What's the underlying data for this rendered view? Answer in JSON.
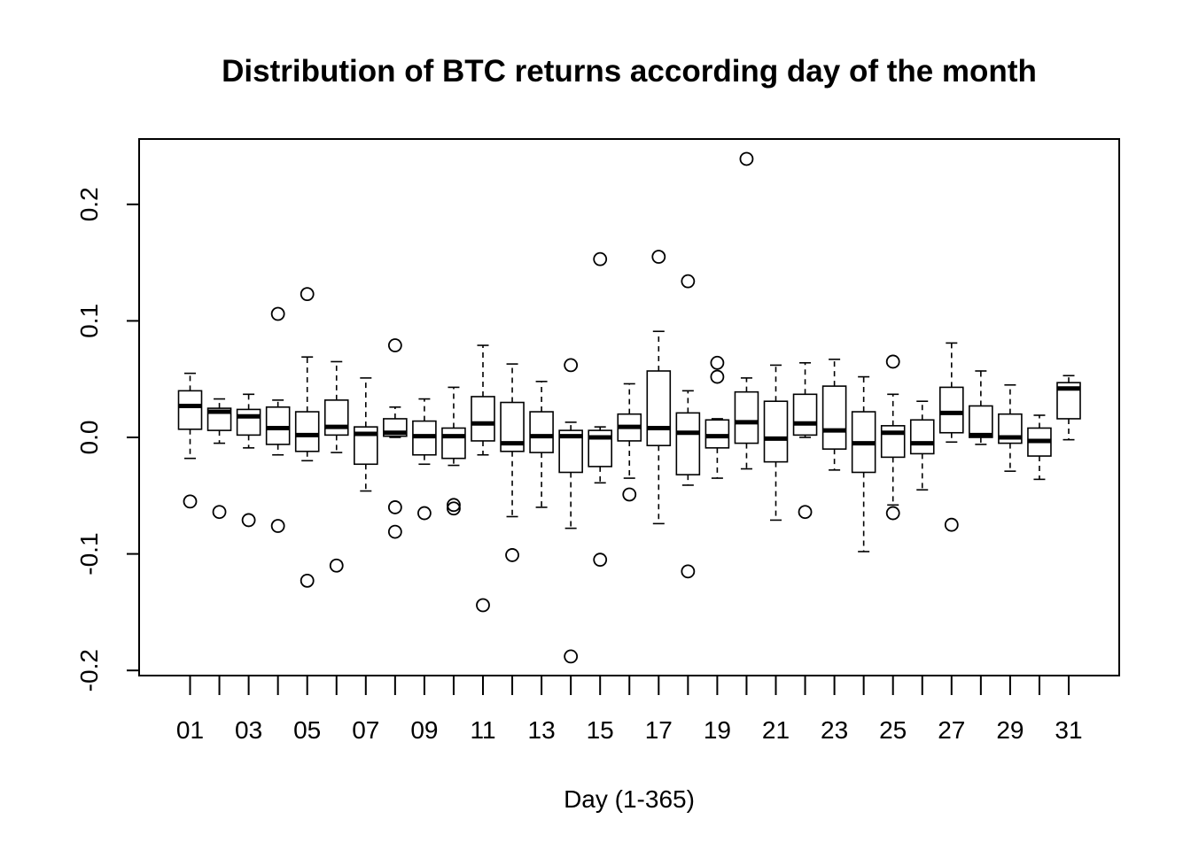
{
  "chart_data": {
    "type": "boxplot",
    "title": "Distribution of BTC returns according day of the month",
    "xlabel": "Day (1-365)",
    "ylabel": "",
    "ylim": [
      -0.205,
      0.252
    ],
    "yticks": [
      -0.2,
      -0.1,
      0.0,
      0.1,
      0.2
    ],
    "ytick_labels": [
      "-0.2",
      "-0.1",
      "0.0",
      "0.1",
      "0.2"
    ],
    "categories": [
      "01",
      "02",
      "03",
      "04",
      "05",
      "06",
      "07",
      "08",
      "09",
      "10",
      "11",
      "12",
      "13",
      "14",
      "15",
      "16",
      "17",
      "18",
      "19",
      "20",
      "21",
      "22",
      "23",
      "24",
      "25",
      "26",
      "27",
      "28",
      "29",
      "30",
      "31"
    ],
    "shown_x_labels": [
      "01",
      "03",
      "05",
      "07",
      "09",
      "11",
      "13",
      "15",
      "17",
      "19",
      "21",
      "23",
      "25",
      "27",
      "29",
      "31"
    ],
    "grid": false,
    "legend": "none",
    "boxes": [
      {
        "day": "01",
        "lower_whisker": -0.018,
        "q1": 0.007,
        "median": 0.027,
        "q3": 0.04,
        "upper_whisker": 0.055,
        "outliers": [
          -0.055
        ]
      },
      {
        "day": "02",
        "lower_whisker": -0.005,
        "q1": 0.006,
        "median": 0.022,
        "q3": 0.025,
        "upper_whisker": 0.033,
        "outliers": [
          -0.064
        ]
      },
      {
        "day": "03",
        "lower_whisker": -0.009,
        "q1": 0.002,
        "median": 0.018,
        "q3": 0.024,
        "upper_whisker": 0.037,
        "outliers": [
          -0.071
        ]
      },
      {
        "day": "04",
        "lower_whisker": -0.015,
        "q1": -0.006,
        "median": 0.008,
        "q3": 0.026,
        "upper_whisker": 0.032,
        "outliers": [
          0.106,
          -0.076
        ]
      },
      {
        "day": "05",
        "lower_whisker": -0.02,
        "q1": -0.012,
        "median": 0.002,
        "q3": 0.022,
        "upper_whisker": 0.069,
        "outliers": [
          0.123,
          -0.123
        ]
      },
      {
        "day": "06",
        "lower_whisker": -0.013,
        "q1": 0.002,
        "median": 0.009,
        "q3": 0.032,
        "upper_whisker": 0.065,
        "outliers": [
          -0.11
        ]
      },
      {
        "day": "07",
        "lower_whisker": -0.046,
        "q1": -0.023,
        "median": 0.003,
        "q3": 0.009,
        "upper_whisker": 0.051,
        "outliers": []
      },
      {
        "day": "08",
        "lower_whisker": 0.0,
        "q1": 0.001,
        "median": 0.004,
        "q3": 0.016,
        "upper_whisker": 0.026,
        "outliers": [
          0.079,
          -0.06,
          -0.081
        ]
      },
      {
        "day": "09",
        "lower_whisker": -0.023,
        "q1": -0.015,
        "median": 0.001,
        "q3": 0.014,
        "upper_whisker": 0.033,
        "outliers": [
          -0.065
        ]
      },
      {
        "day": "10",
        "lower_whisker": -0.024,
        "q1": -0.018,
        "median": 0.001,
        "q3": 0.008,
        "upper_whisker": 0.043,
        "outliers": [
          -0.058,
          -0.061
        ]
      },
      {
        "day": "11",
        "lower_whisker": -0.015,
        "q1": -0.003,
        "median": 0.012,
        "q3": 0.035,
        "upper_whisker": 0.079,
        "outliers": [
          -0.144
        ]
      },
      {
        "day": "12",
        "lower_whisker": -0.068,
        "q1": -0.012,
        "median": -0.005,
        "q3": 0.03,
        "upper_whisker": 0.063,
        "outliers": [
          -0.101
        ]
      },
      {
        "day": "13",
        "lower_whisker": -0.06,
        "q1": -0.013,
        "median": 0.001,
        "q3": 0.022,
        "upper_whisker": 0.048,
        "outliers": []
      },
      {
        "day": "14",
        "lower_whisker": -0.078,
        "q1": -0.03,
        "median": 0.001,
        "q3": 0.006,
        "upper_whisker": 0.013,
        "outliers": [
          0.062,
          -0.188
        ]
      },
      {
        "day": "15",
        "lower_whisker": -0.039,
        "q1": -0.025,
        "median": 0.0,
        "q3": 0.006,
        "upper_whisker": 0.009,
        "outliers": [
          0.153,
          -0.105
        ]
      },
      {
        "day": "16",
        "lower_whisker": -0.035,
        "q1": -0.003,
        "median": 0.009,
        "q3": 0.02,
        "upper_whisker": 0.046,
        "outliers": [
          -0.049
        ]
      },
      {
        "day": "17",
        "lower_whisker": -0.074,
        "q1": -0.007,
        "median": 0.008,
        "q3": 0.057,
        "upper_whisker": 0.091,
        "outliers": [
          0.155
        ]
      },
      {
        "day": "18",
        "lower_whisker": -0.041,
        "q1": -0.032,
        "median": 0.004,
        "q3": 0.021,
        "upper_whisker": 0.04,
        "outliers": [
          0.134,
          -0.115
        ]
      },
      {
        "day": "19",
        "lower_whisker": -0.035,
        "q1": -0.009,
        "median": 0.001,
        "q3": 0.015,
        "upper_whisker": 0.016,
        "outliers": [
          0.064,
          0.052
        ]
      },
      {
        "day": "20",
        "lower_whisker": -0.027,
        "q1": -0.005,
        "median": 0.013,
        "q3": 0.039,
        "upper_whisker": 0.051,
        "outliers": [
          0.239
        ]
      },
      {
        "day": "21",
        "lower_whisker": -0.071,
        "q1": -0.021,
        "median": -0.001,
        "q3": 0.031,
        "upper_whisker": 0.062,
        "outliers": []
      },
      {
        "day": "22",
        "lower_whisker": 0.0,
        "q1": 0.002,
        "median": 0.012,
        "q3": 0.037,
        "upper_whisker": 0.064,
        "outliers": [
          -0.064
        ]
      },
      {
        "day": "23",
        "lower_whisker": -0.028,
        "q1": -0.01,
        "median": 0.006,
        "q3": 0.044,
        "upper_whisker": 0.067,
        "outliers": []
      },
      {
        "day": "24",
        "lower_whisker": -0.098,
        "q1": -0.03,
        "median": -0.005,
        "q3": 0.022,
        "upper_whisker": 0.052,
        "outliers": []
      },
      {
        "day": "25",
        "lower_whisker": -0.058,
        "q1": -0.017,
        "median": 0.004,
        "q3": 0.01,
        "upper_whisker": 0.037,
        "outliers": [
          0.065,
          -0.065
        ]
      },
      {
        "day": "26",
        "lower_whisker": -0.045,
        "q1": -0.014,
        "median": -0.005,
        "q3": 0.015,
        "upper_whisker": 0.031,
        "outliers": []
      },
      {
        "day": "27",
        "lower_whisker": -0.004,
        "q1": 0.004,
        "median": 0.021,
        "q3": 0.043,
        "upper_whisker": 0.081,
        "outliers": [
          -0.075
        ]
      },
      {
        "day": "28",
        "lower_whisker": -0.006,
        "q1": 0.0,
        "median": 0.002,
        "q3": 0.027,
        "upper_whisker": 0.057,
        "outliers": []
      },
      {
        "day": "29",
        "lower_whisker": -0.029,
        "q1": -0.005,
        "median": 0.0,
        "q3": 0.02,
        "upper_whisker": 0.045,
        "outliers": []
      },
      {
        "day": "30",
        "lower_whisker": -0.036,
        "q1": -0.016,
        "median": -0.003,
        "q3": 0.008,
        "upper_whisker": 0.019,
        "outliers": []
      },
      {
        "day": "31",
        "lower_whisker": -0.002,
        "q1": 0.016,
        "median": 0.042,
        "q3": 0.047,
        "upper_whisker": 0.053,
        "outliers": []
      }
    ]
  }
}
